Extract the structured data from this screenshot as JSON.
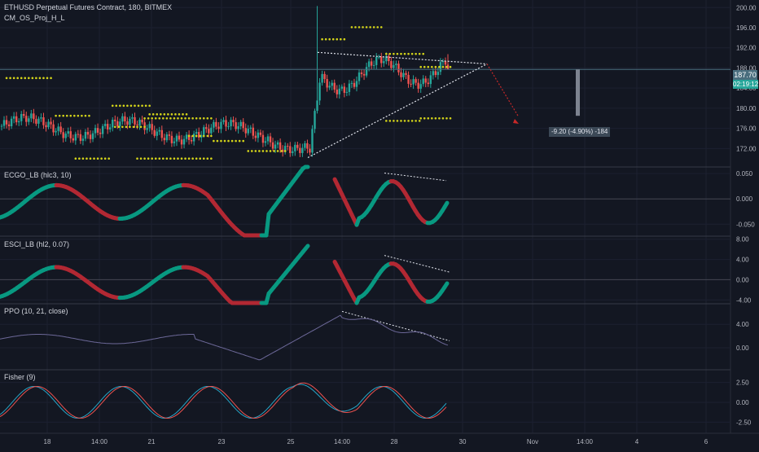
{
  "header": {
    "title": "ETHUSD Perpetual Futures Contract, 180, BITMEX",
    "overlay": "CM_OS_Proj_H_L"
  },
  "price_badges": {
    "last": "187.70",
    "countdown": "02:19:12"
  },
  "measure_label": "-9.20 (-4.90%) -184",
  "colors": {
    "bg": "#131722",
    "up": "#26a69a",
    "down": "#ef5350",
    "osc_up": "#089981",
    "osc_down": "#b22833",
    "dots": "#d4d41a",
    "ppo": "#6c6898",
    "fisher_a": "#26a6c8",
    "fisher_b": "#ef5350"
  },
  "chart_data": [
    {
      "type": "candlestick",
      "title": "ETHUSD Perpetual Futures Contract, 180, BITMEX",
      "y_ticks": [
        "200.00",
        "196.00",
        "192.00",
        "188.00",
        "184.00",
        "180.00",
        "176.00",
        "172.00"
      ],
      "ylim": [
        168.5,
        201.5
      ],
      "x_ticks": [
        "18",
        "14:00",
        "21",
        "23",
        "25",
        "14:00",
        "28",
        "30",
        "Nov",
        "14:00",
        "4",
        "6"
      ],
      "last_price": 187.7,
      "annotations": [
        "triangle pattern",
        "projected drop -9.20 (-4.90%)"
      ]
    },
    {
      "type": "line",
      "title": "ECGO_LB (hlc3, 10)",
      "y_ticks": [
        "0.050",
        "0.000",
        "-0.050"
      ],
      "ylim": [
        -0.072,
        0.063
      ]
    },
    {
      "type": "line",
      "title": "ESCI_LB (hl2, 0.07)",
      "y_ticks": [
        "8.00",
        "4.00",
        "0.00",
        "-4.00"
      ],
      "ylim": [
        -4.6,
        8.6
      ]
    },
    {
      "type": "line",
      "title": "PPO (10, 21, close)",
      "y_ticks": [
        "4.00",
        "0.00"
      ],
      "ylim": [
        -3.6,
        7.5
      ]
    },
    {
      "type": "line",
      "title": "Fisher (9)",
      "y_ticks": [
        "2.50",
        "0.00",
        "-2.50"
      ],
      "ylim": [
        -3.9,
        4.1
      ]
    }
  ]
}
